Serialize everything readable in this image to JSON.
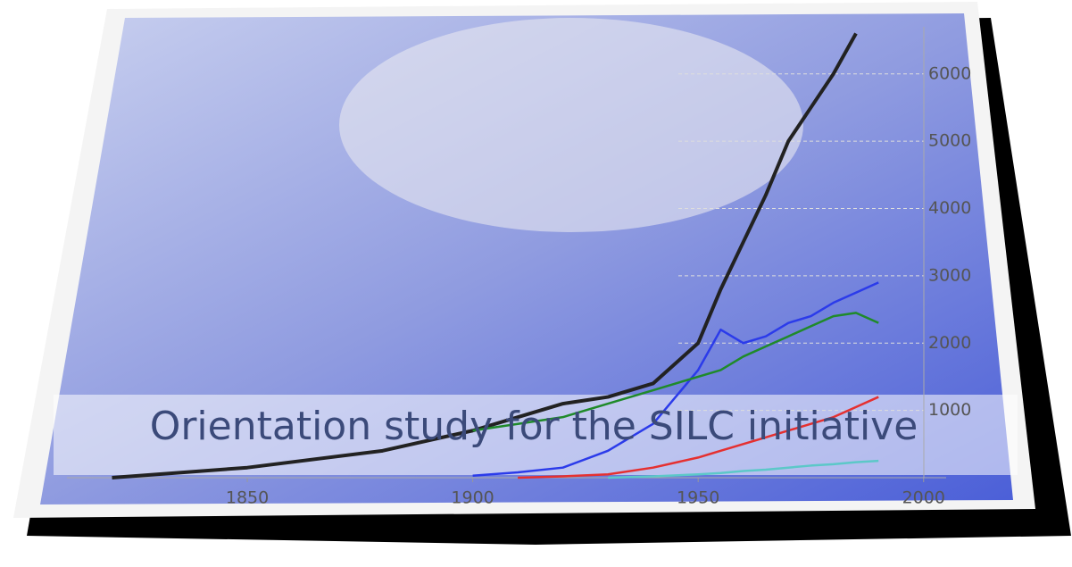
{
  "chart_data": {
    "type": "line",
    "title": "Orientation study for the SILC initiative",
    "x": [
      1820,
      1850,
      1880,
      1900,
      1910,
      1920,
      1930,
      1940,
      1950,
      1955,
      1960,
      1965,
      1970,
      1975,
      1980,
      1985,
      1990
    ],
    "series": [
      {
        "color": "#222222",
        "values": [
          0,
          150,
          400,
          700,
          900,
          1100,
          1200,
          1400,
          2000,
          2800,
          3500,
          4200,
          5000,
          5500,
          6000,
          6600,
          null
        ]
      },
      {
        "color": "#2b3bea",
        "values": [
          null,
          null,
          null,
          30,
          80,
          150,
          400,
          800,
          1600,
          2200,
          2000,
          2100,
          2300,
          2400,
          2600,
          2750,
          2900
        ]
      },
      {
        "color": "#1f8a2a",
        "values": [
          null,
          null,
          null,
          700,
          800,
          900,
          1100,
          1300,
          1500,
          1600,
          1800,
          1950,
          2100,
          2250,
          2400,
          2450,
          2300
        ]
      },
      {
        "color": "#e53030",
        "values": [
          null,
          null,
          null,
          null,
          0,
          20,
          50,
          150,
          300,
          400,
          500,
          600,
          700,
          800,
          900,
          1050,
          1200
        ]
      },
      {
        "color": "#5cc8c8",
        "values": [
          null,
          null,
          null,
          null,
          null,
          null,
          0,
          20,
          50,
          70,
          100,
          120,
          150,
          180,
          200,
          230,
          250
        ]
      }
    ],
    "xlim": [
      1810,
      2005
    ],
    "xticks": [
      1850,
      1900,
      1950,
      2000
    ],
    "ylim": [
      0,
      6700
    ],
    "yticks": [
      1000,
      2000,
      3000,
      4000,
      5000,
      6000
    ],
    "grid": true
  }
}
